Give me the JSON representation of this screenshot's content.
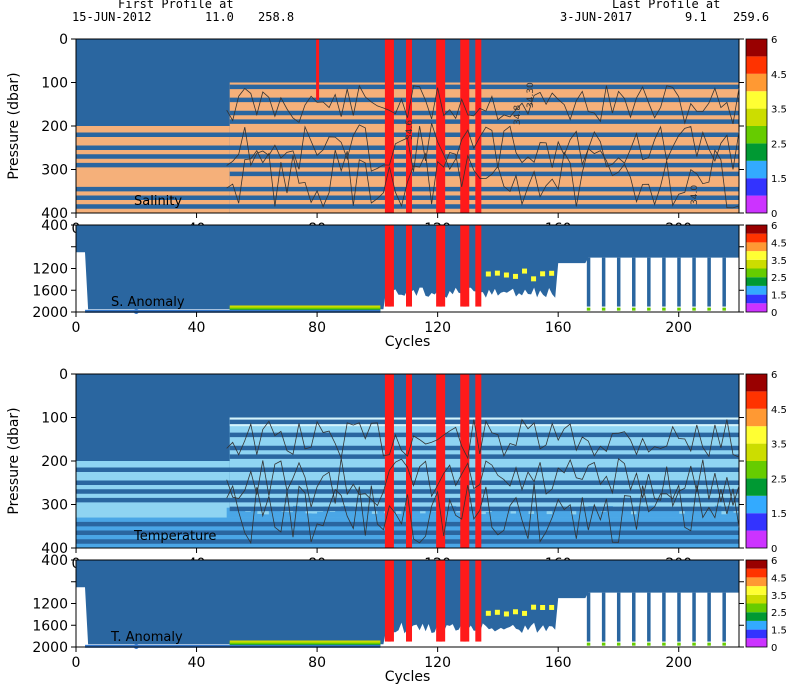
{
  "header": {
    "first_label": "First Profile at",
    "first_date": "15-JUN-2012",
    "first_lat": "11.0",
    "first_lon": "258.8",
    "last_label": "Last Profile at",
    "last_date": "3-JUN-2017",
    "last_lat": "9.1",
    "last_lon": "259.6"
  },
  "colors": {
    "background_flag": "#2a66a0",
    "salinity_fill": "#f5b07a",
    "temperature_fill": "#8fd4f2",
    "bad_flag": "#ff1a1a",
    "colorbar": [
      "#cc33ff",
      "#3333ff",
      "#33aaff",
      "#009933",
      "#66cc00",
      "#ccdd00",
      "#ffff33",
      "#ff9933",
      "#ff3300",
      "#990000"
    ]
  },
  "chart_data": [
    {
      "type": "heatmap",
      "panel": "salinity",
      "label": "Salinity",
      "ylabel": "Pressure (dbar)",
      "xlabel": "",
      "xlim": [
        0,
        220
      ],
      "ylim": [
        400,
        0
      ],
      "x_ticks": [
        0,
        40,
        80,
        120,
        160,
        200
      ],
      "y_ticks": [
        0,
        100,
        200,
        300,
        400
      ],
      "contour_labels": [
        "34.30",
        "34.6",
        "34.8",
        "34.0"
      ],
      "bad_columns": [
        80,
        103,
        104,
        110,
        120,
        121,
        128,
        129,
        133
      ],
      "colorbar_ticks": [
        "6",
        "4.5",
        "3.5",
        "2.5",
        "1.5",
        "0"
      ]
    },
    {
      "type": "heatmap",
      "panel": "salinity-anomaly",
      "label": "S. Anomaly",
      "ylabel": "",
      "xlabel": "Cycles",
      "xlim": [
        0,
        220
      ],
      "ylim": [
        2000,
        400
      ],
      "x_ticks": [
        0,
        40,
        80,
        120,
        160,
        200
      ],
      "y_ticks": [
        400,
        800,
        1200,
        1600,
        2000
      ],
      "y_tick_labels": [
        "400",
        "",
        "1200",
        "1600",
        "2000"
      ],
      "bad_columns": [
        103,
        104,
        110,
        120,
        121,
        128,
        129,
        133
      ],
      "colorbar_ticks": [
        "6",
        "4.5",
        "3.5",
        "2.5",
        "1.5",
        "0"
      ]
    },
    {
      "type": "heatmap",
      "panel": "temperature",
      "label": "Temperature",
      "ylabel": "Pressure (dbar)",
      "xlabel": "",
      "xlim": [
        0,
        220
      ],
      "ylim": [
        400,
        0
      ],
      "x_ticks": [
        0,
        40,
        80,
        120,
        160,
        200
      ],
      "y_ticks": [
        0,
        100,
        200,
        300,
        400
      ],
      "bad_columns": [
        103,
        104,
        110,
        120,
        121,
        128,
        129,
        133
      ],
      "colorbar_ticks": [
        "6",
        "4.5",
        "3.5",
        "2.5",
        "1.5",
        "0"
      ]
    },
    {
      "type": "heatmap",
      "panel": "temperature-anomaly",
      "label": "T. Anomaly",
      "ylabel": "",
      "xlabel": "Cycles",
      "xlim": [
        0,
        220
      ],
      "ylim": [
        2000,
        400
      ],
      "x_ticks": [
        0,
        40,
        80,
        120,
        160,
        200
      ],
      "y_ticks": [
        400,
        800,
        1200,
        1600,
        2000
      ],
      "y_tick_labels": [
        "400",
        "",
        "1200",
        "1600",
        "2000"
      ],
      "bad_columns": [
        103,
        104,
        110,
        120,
        121,
        128,
        129,
        133
      ],
      "colorbar_ticks": [
        "6",
        "4.5",
        "3.5",
        "2.5",
        "1.5",
        "0"
      ]
    }
  ]
}
